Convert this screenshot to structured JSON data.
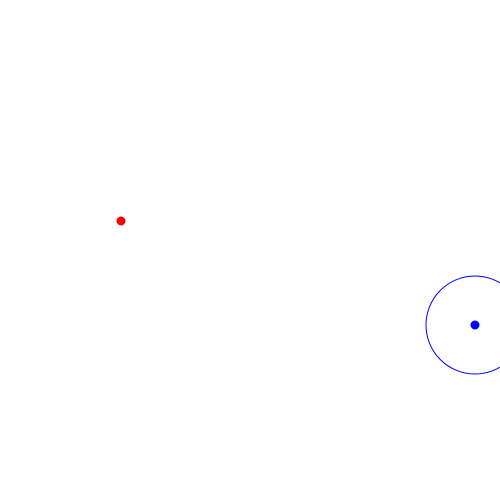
{
  "scene": {
    "background_color": "#ffffff",
    "red_marker": {
      "color": "#ff0000"
    },
    "blue_target": {
      "dot_color": "#0000ff",
      "ring_color": "#0000ff"
    }
  }
}
